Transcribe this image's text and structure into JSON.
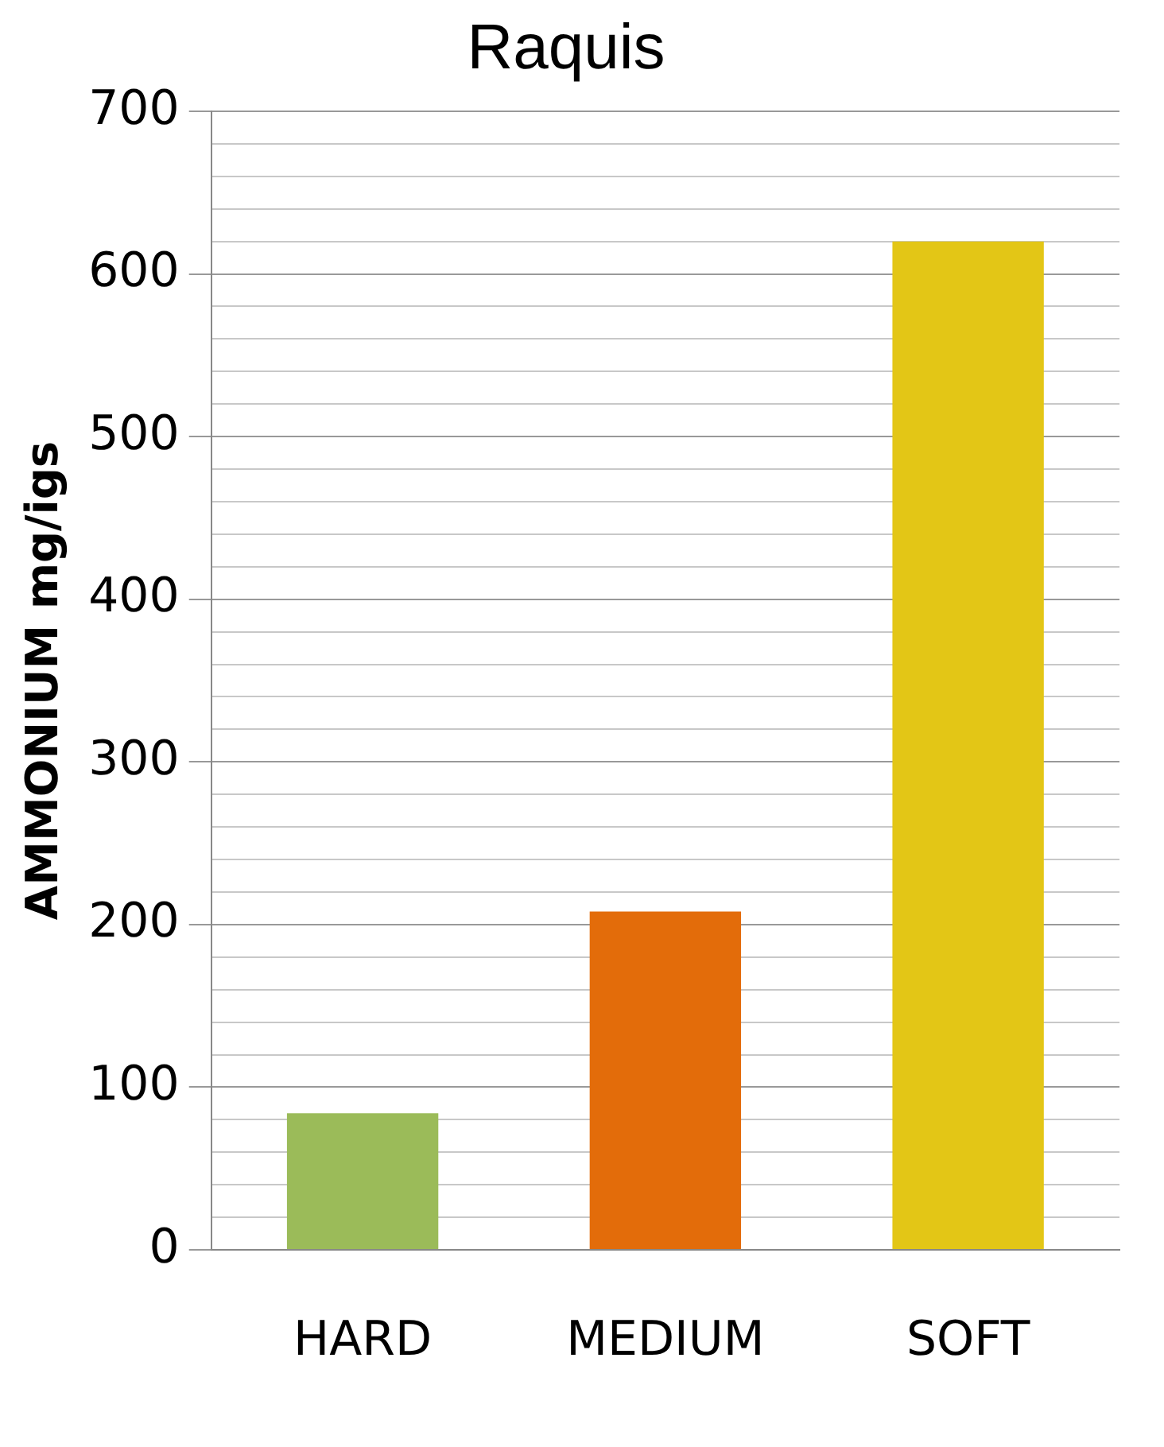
{
  "chart_data": {
    "type": "bar",
    "title": "Raquis",
    "ylabel": "AMMONIUM mg/igs",
    "categories": [
      "HARD",
      "MEDIUM",
      "SOFT"
    ],
    "values": [
      84,
      208,
      620
    ],
    "colors": [
      "#9bbb59",
      "#e36c0a",
      "#e3c616"
    ],
    "ylim": [
      0,
      700
    ],
    "yticks": [
      0,
      {
        "value": 20,
        "label": null
      },
      {
        "value": 40,
        "label": null
      },
      {
        "value": 60,
        "label": null
      },
      {
        "value": 80,
        "label": null
      },
      100,
      {
        "value": 120,
        "label": null
      },
      {
        "value": 140,
        "label": null
      },
      {
        "value": 160,
        "label": null
      },
      {
        "value": 180,
        "label": null
      },
      200,
      {
        "value": 220,
        "label": null
      },
      {
        "value": 240,
        "label": null
      },
      {
        "value": 260,
        "label": null
      },
      {
        "value": 280,
        "label": null
      },
      300,
      {
        "value": 320,
        "label": null
      },
      {
        "value": 340,
        "label": null
      },
      {
        "value": 360,
        "label": null
      },
      {
        "value": 380,
        "label": null
      },
      400,
      {
        "value": 420,
        "label": null
      },
      {
        "value": 440,
        "label": null
      },
      {
        "value": 460,
        "label": null
      },
      {
        "value": 480,
        "label": null
      },
      500,
      {
        "value": 520,
        "label": null
      },
      {
        "value": 540,
        "label": null
      },
      {
        "value": 560,
        "label": null
      },
      {
        "value": 580,
        "label": null
      },
      600,
      {
        "value": 620,
        "label": null
      },
      {
        "value": 640,
        "label": null
      },
      {
        "value": 660,
        "label": null
      },
      {
        "value": 680,
        "label": null
      },
      700
    ],
    "grid": "y",
    "legend": false
  }
}
